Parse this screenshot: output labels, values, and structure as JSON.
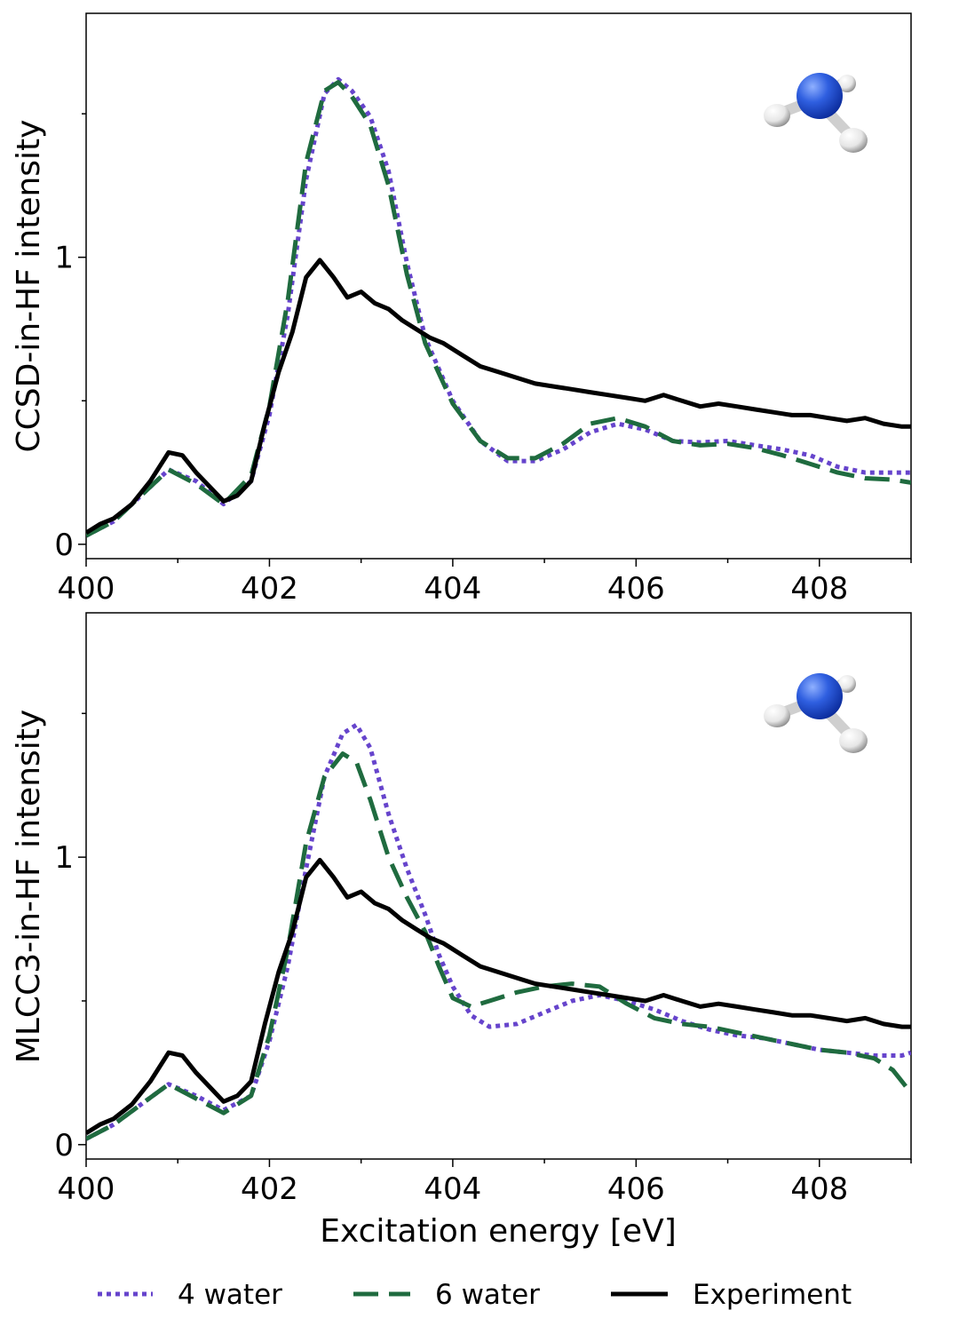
{
  "figure": {
    "xlabel": "Excitation energy [eV]",
    "legend": {
      "placement": "bottom-center",
      "entries": [
        {
          "label": "4 water",
          "color": "#6644cc",
          "style": "dotted"
        },
        {
          "label": "6 water",
          "color": "#1f6b3f",
          "style": "dashed"
        },
        {
          "label": "Experiment",
          "color": "#000000",
          "style": "solid"
        }
      ]
    }
  },
  "chart_data": [
    {
      "type": "line",
      "title": "",
      "xlabel": "",
      "ylabel": "CCSD-in-HF intensity",
      "xlim": [
        400,
        409
      ],
      "ylim": [
        -0.05,
        1.85
      ],
      "x_ticks": [
        "400",
        "402",
        "404",
        "406",
        "408"
      ],
      "y_ticks": [
        "0",
        "1"
      ],
      "inset_icon": "ammonia-molecule-icon",
      "series": [
        {
          "name": "4 water",
          "color": "#6644cc",
          "style": "dotted",
          "x": [
            400,
            400.3,
            400.6,
            400.9,
            401.2,
            401.5,
            401.8,
            402.0,
            402.2,
            402.4,
            402.6,
            402.75,
            402.9,
            403.1,
            403.3,
            403.5,
            403.7,
            404.0,
            404.3,
            404.6,
            404.9,
            405.2,
            405.5,
            405.8,
            406.1,
            406.4,
            406.7,
            407.0,
            407.3,
            407.6,
            407.9,
            408.2,
            408.5,
            408.8,
            409.0
          ],
          "y": [
            0.03,
            0.08,
            0.17,
            0.26,
            0.22,
            0.14,
            0.22,
            0.45,
            0.8,
            1.27,
            1.57,
            1.62,
            1.58,
            1.49,
            1.3,
            0.98,
            0.72,
            0.5,
            0.36,
            0.29,
            0.29,
            0.33,
            0.39,
            0.42,
            0.4,
            0.36,
            0.355,
            0.36,
            0.345,
            0.33,
            0.31,
            0.27,
            0.25,
            0.25,
            0.25
          ]
        },
        {
          "name": "6 water",
          "color": "#1f6b3f",
          "style": "dashed",
          "x": [
            400,
            400.3,
            400.6,
            400.9,
            401.2,
            401.5,
            401.8,
            402.0,
            402.2,
            402.4,
            402.6,
            402.75,
            402.9,
            403.1,
            403.3,
            403.5,
            403.7,
            404.0,
            404.3,
            404.6,
            404.9,
            405.2,
            405.5,
            405.8,
            406.1,
            406.4,
            406.7,
            407.0,
            407.3,
            407.6,
            407.9,
            408.2,
            408.5,
            408.8,
            409.0
          ],
          "y": [
            0.03,
            0.08,
            0.17,
            0.26,
            0.21,
            0.14,
            0.24,
            0.48,
            0.85,
            1.33,
            1.58,
            1.61,
            1.56,
            1.46,
            1.25,
            0.94,
            0.7,
            0.49,
            0.36,
            0.3,
            0.3,
            0.35,
            0.42,
            0.44,
            0.41,
            0.36,
            0.345,
            0.35,
            0.335,
            0.31,
            0.28,
            0.25,
            0.23,
            0.225,
            0.215
          ]
        },
        {
          "name": "Experiment",
          "color": "#000000",
          "style": "solid",
          "x": [
            400,
            400.15,
            400.3,
            400.5,
            400.7,
            400.9,
            401.05,
            401.2,
            401.35,
            401.5,
            401.65,
            401.8,
            401.95,
            402.1,
            402.25,
            402.4,
            402.55,
            402.7,
            402.85,
            403.0,
            403.15,
            403.3,
            403.45,
            403.6,
            403.75,
            403.9,
            404.1,
            404.3,
            404.5,
            404.7,
            404.9,
            405.1,
            405.3,
            405.5,
            405.7,
            405.9,
            406.1,
            406.3,
            406.5,
            406.7,
            406.9,
            407.1,
            407.3,
            407.5,
            407.7,
            407.9,
            408.1,
            408.3,
            408.5,
            408.7,
            408.9,
            409.0
          ],
          "y": [
            0.04,
            0.07,
            0.09,
            0.14,
            0.22,
            0.32,
            0.31,
            0.25,
            0.2,
            0.15,
            0.17,
            0.22,
            0.42,
            0.6,
            0.74,
            0.93,
            0.99,
            0.93,
            0.86,
            0.88,
            0.84,
            0.82,
            0.78,
            0.75,
            0.72,
            0.7,
            0.66,
            0.62,
            0.6,
            0.58,
            0.56,
            0.55,
            0.54,
            0.53,
            0.52,
            0.51,
            0.5,
            0.52,
            0.5,
            0.48,
            0.49,
            0.48,
            0.47,
            0.46,
            0.45,
            0.45,
            0.44,
            0.43,
            0.44,
            0.42,
            0.41,
            0.41
          ]
        }
      ]
    },
    {
      "type": "line",
      "title": "",
      "xlabel": "Excitation energy [eV]",
      "ylabel": "MLCC3-in-HF intensity",
      "xlim": [
        400,
        409
      ],
      "ylim": [
        -0.05,
        1.85
      ],
      "x_ticks": [
        "400",
        "402",
        "404",
        "406",
        "408"
      ],
      "y_ticks": [
        "0",
        "1"
      ],
      "inset_icon": "ammonia-molecule-icon",
      "series": [
        {
          "name": "4 water",
          "color": "#6644cc",
          "style": "dotted",
          "x": [
            400,
            400.3,
            400.6,
            400.9,
            401.2,
            401.5,
            401.8,
            402.0,
            402.2,
            402.4,
            402.6,
            402.8,
            402.95,
            403.1,
            403.3,
            403.5,
            403.7,
            403.85,
            404.0,
            404.2,
            404.4,
            404.7,
            405.0,
            405.3,
            405.6,
            405.9,
            406.2,
            406.5,
            406.8,
            407.1,
            407.4,
            407.7,
            408.0,
            408.3,
            408.6,
            408.9,
            409.0
          ],
          "y": [
            0.02,
            0.07,
            0.14,
            0.21,
            0.17,
            0.12,
            0.17,
            0.36,
            0.62,
            0.96,
            1.28,
            1.43,
            1.46,
            1.38,
            1.15,
            0.96,
            0.8,
            0.66,
            0.55,
            0.45,
            0.41,
            0.42,
            0.46,
            0.5,
            0.52,
            0.5,
            0.47,
            0.43,
            0.4,
            0.38,
            0.37,
            0.35,
            0.33,
            0.32,
            0.31,
            0.31,
            0.32
          ]
        },
        {
          "name": "6 water",
          "color": "#1f6b3f",
          "style": "dashed",
          "x": [
            400,
            400.3,
            400.6,
            400.9,
            401.2,
            401.5,
            401.8,
            402.0,
            402.2,
            402.4,
            402.6,
            402.8,
            402.95,
            403.1,
            403.3,
            403.5,
            403.7,
            403.85,
            404.0,
            404.2,
            404.4,
            404.7,
            405.0,
            405.3,
            405.6,
            405.9,
            406.2,
            406.5,
            406.8,
            407.1,
            407.4,
            407.7,
            408.0,
            408.3,
            408.6,
            408.8,
            409.0
          ],
          "y": [
            0.02,
            0.07,
            0.14,
            0.21,
            0.16,
            0.11,
            0.17,
            0.38,
            0.68,
            1.05,
            1.28,
            1.36,
            1.33,
            1.2,
            1.0,
            0.86,
            0.74,
            0.62,
            0.51,
            0.48,
            0.5,
            0.53,
            0.55,
            0.56,
            0.55,
            0.49,
            0.44,
            0.42,
            0.41,
            0.39,
            0.37,
            0.35,
            0.33,
            0.32,
            0.3,
            0.26,
            0.18
          ]
        },
        {
          "name": "Experiment",
          "color": "#000000",
          "style": "solid",
          "x": [
            400,
            400.15,
            400.3,
            400.5,
            400.7,
            400.9,
            401.05,
            401.2,
            401.35,
            401.5,
            401.65,
            401.8,
            401.95,
            402.1,
            402.25,
            402.4,
            402.55,
            402.7,
            402.85,
            403.0,
            403.15,
            403.3,
            403.45,
            403.6,
            403.75,
            403.9,
            404.1,
            404.3,
            404.5,
            404.7,
            404.9,
            405.1,
            405.3,
            405.5,
            405.7,
            405.9,
            406.1,
            406.3,
            406.5,
            406.7,
            406.9,
            407.1,
            407.3,
            407.5,
            407.7,
            407.9,
            408.1,
            408.3,
            408.5,
            408.7,
            408.9,
            409.0
          ],
          "y": [
            0.04,
            0.07,
            0.09,
            0.14,
            0.22,
            0.32,
            0.31,
            0.25,
            0.2,
            0.15,
            0.17,
            0.22,
            0.42,
            0.6,
            0.74,
            0.93,
            0.99,
            0.93,
            0.86,
            0.88,
            0.84,
            0.82,
            0.78,
            0.75,
            0.72,
            0.7,
            0.66,
            0.62,
            0.6,
            0.58,
            0.56,
            0.55,
            0.54,
            0.53,
            0.52,
            0.51,
            0.5,
            0.52,
            0.5,
            0.48,
            0.49,
            0.48,
            0.47,
            0.46,
            0.45,
            0.45,
            0.44,
            0.43,
            0.44,
            0.42,
            0.41,
            0.41
          ]
        }
      ]
    }
  ]
}
